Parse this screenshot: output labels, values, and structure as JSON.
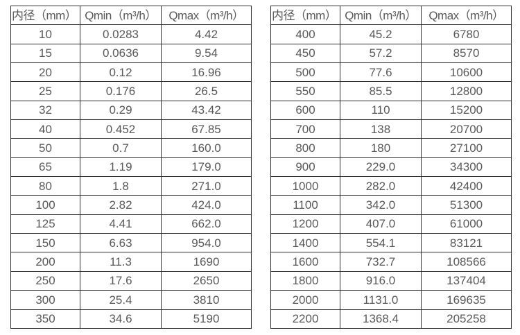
{
  "page": {
    "background_color": "#ffffff",
    "text_color": "#595959",
    "border_color": "#2f2f2f"
  },
  "tables": [
    {
      "name": "flow-range-table-small-diameters",
      "headers": [
        "内径（mm）",
        "Qmin（m³/h）",
        "Qmax（m³/h）"
      ],
      "rows": [
        [
          "10",
          "0.0283",
          "4.42"
        ],
        [
          "15",
          "0.0636",
          "9.54"
        ],
        [
          "20",
          "0.12",
          "16.96"
        ],
        [
          "25",
          "0.176",
          "26.5"
        ],
        [
          "32",
          "0.29",
          "43.42"
        ],
        [
          "40",
          "0.452",
          "67.85"
        ],
        [
          "50",
          "0.7",
          "160.0"
        ],
        [
          "65",
          "1.19",
          "179.0"
        ],
        [
          "80",
          "1.8",
          "271.0"
        ],
        [
          "100",
          "2.82",
          "424.0"
        ],
        [
          "125",
          "4.41",
          "662.0"
        ],
        [
          "150",
          "6.63",
          "954.0"
        ],
        [
          "200",
          "11.3",
          "1690"
        ],
        [
          "250",
          "17.6",
          "2650"
        ],
        [
          "300",
          "25.4",
          "3810"
        ],
        [
          "350",
          "34.6",
          "5190"
        ]
      ]
    },
    {
      "name": "flow-range-table-large-diameters",
      "headers": [
        "内径（mm）",
        "Qmin（m³/h）",
        "Qmax（m³/h）"
      ],
      "rows": [
        [
          "400",
          "45.2",
          "6780"
        ],
        [
          "450",
          "57.2",
          "8570"
        ],
        [
          "500",
          "77.6",
          "10600"
        ],
        [
          "550",
          "85.5",
          "12800"
        ],
        [
          "600",
          "110",
          "15200"
        ],
        [
          "700",
          "138",
          "20700"
        ],
        [
          "800",
          "180",
          "27100"
        ],
        [
          "900",
          "229.0",
          "34300"
        ],
        [
          "1000",
          "282.0",
          "42400"
        ],
        [
          "1100",
          "342.0",
          "51300"
        ],
        [
          "1200",
          "407.0",
          "61000"
        ],
        [
          "1400",
          "554.1",
          "83121"
        ],
        [
          "1600",
          "732.7",
          "108566"
        ],
        [
          "1800",
          "916.0",
          "137404"
        ],
        [
          "2000",
          "1131.0",
          "169635"
        ],
        [
          "2200",
          "1368.4",
          "205258"
        ]
      ]
    }
  ]
}
